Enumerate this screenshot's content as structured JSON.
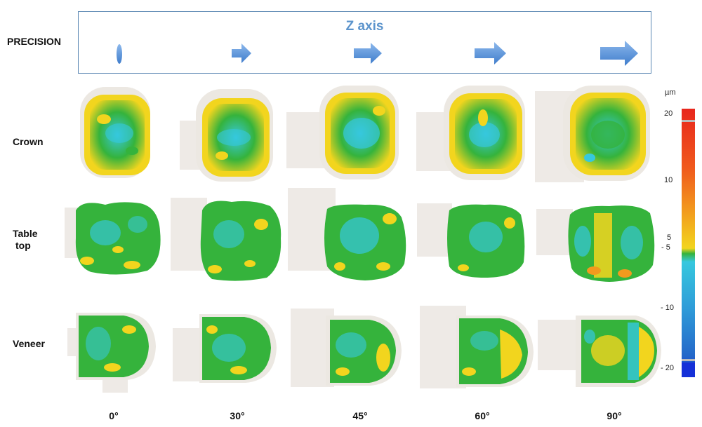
{
  "header": {
    "left_label": "PRECISION",
    "box_title": "Z axis"
  },
  "rows": [
    {
      "label": "Crown"
    },
    {
      "label_line1": "Table",
      "label_line2": "top"
    },
    {
      "label": "Veneer"
    }
  ],
  "columns": [
    "0°",
    "30°",
    "45°",
    "60°",
    "90°"
  ],
  "color_scale": {
    "unit": "µm",
    "ticks": [
      "20",
      "10",
      "5",
      "- 5",
      "- 10",
      "- 20"
    ],
    "colors": {
      "high": "#e8261d",
      "orange": "#f29a1e",
      "yellow": "#f2d51e",
      "green": "#35b33c",
      "cyan": "#36c8de",
      "blue": "#2468c9",
      "deep_blue": "#1530d8"
    }
  },
  "arrow_color": "#5a93d6"
}
